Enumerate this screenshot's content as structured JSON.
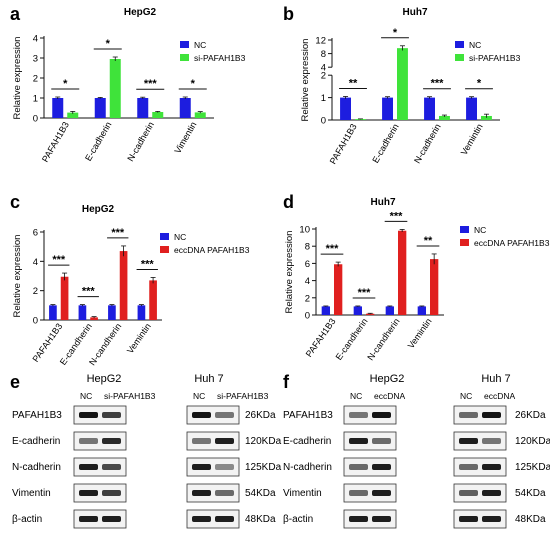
{
  "colors": {
    "nc": "#1d1ddf",
    "si": "#3fe33a",
    "ecc": "#e0201f",
    "axis": "#111111",
    "band_dark": "#1a1a1a",
    "band_bg": "#f3f3f3"
  },
  "chart_data": [
    {
      "panel": "a",
      "type": "bar",
      "title": "HepG2",
      "ylabel": "Relative expression",
      "categories": [
        "PAFAH1B3",
        "E-cadherin",
        "N-cadherin",
        "Vimentin"
      ],
      "ylim": [
        0,
        4
      ],
      "yticks": [
        "0",
        "1",
        "2",
        "3",
        "4"
      ],
      "legend_position": "top-right",
      "series": [
        {
          "name": "NC",
          "values": [
            1,
            1,
            1,
            1
          ],
          "errors": [
            0.05,
            0.03,
            0.04,
            0.05
          ]
        },
        {
          "name": "si-PAFAH1B3",
          "values": [
            0.27,
            2.95,
            0.3,
            0.28
          ],
          "errors": [
            0.06,
            0.1,
            0.03,
            0.04
          ]
        }
      ],
      "significance": [
        "*",
        "*",
        "***",
        "*"
      ]
    },
    {
      "panel": "b",
      "type": "bar",
      "title": "Huh7",
      "ylabel": "Relative expression",
      "categories": [
        "PAFAH1B3",
        "E-cadherin",
        "N-cadherin",
        "Vemintin"
      ],
      "ylim": [
        0,
        12
      ],
      "axis_break": [
        2,
        4
      ],
      "yticks": [
        "0",
        "1",
        "2",
        "4",
        "8",
        "12"
      ],
      "legend_position": "top-right",
      "series": [
        {
          "name": "NC",
          "values": [
            1,
            1,
            1,
            1
          ],
          "errors": [
            0.05,
            0.04,
            0.04,
            0.04
          ]
        },
        {
          "name": "si-PAFAH1B3",
          "values": [
            0.04,
            9.6,
            0.18,
            0.18
          ],
          "errors": [
            0.01,
            0.7,
            0.04,
            0.08
          ]
        }
      ],
      "significance": [
        "**",
        "*",
        "***",
        "*"
      ]
    },
    {
      "panel": "c",
      "type": "bar",
      "title": "HepG2",
      "ylabel": "Relative expression",
      "categories": [
        "PAFAH1B3",
        "E-candherin",
        "N-candherin",
        "Vemintin"
      ],
      "ylim": [
        0,
        6
      ],
      "yticks": [
        "0",
        "2",
        "4",
        "6"
      ],
      "legend_position": "top-right",
      "series": [
        {
          "name": "NC",
          "values": [
            1,
            1,
            1,
            1
          ],
          "errors": [
            0.05,
            0.05,
            0.05,
            0.05
          ]
        },
        {
          "name": "eccDNA  PAFAH1B3",
          "values": [
            2.95,
            0.18,
            4.7,
            2.7
          ],
          "errors": [
            0.25,
            0.05,
            0.35,
            0.2
          ]
        }
      ],
      "significance": [
        "***",
        "***",
        "***",
        "***"
      ]
    },
    {
      "panel": "d",
      "type": "bar",
      "title": "Huh7",
      "ylabel": "Relative expression",
      "categories": [
        "PAFAH1B3",
        "E-candherin",
        "N-candherin",
        "Vemintin"
      ],
      "ylim": [
        0,
        10
      ],
      "yticks": [
        "0",
        "2",
        "4",
        "6",
        "8",
        "10"
      ],
      "legend_position": "top-right",
      "series": [
        {
          "name": "NC",
          "values": [
            1,
            1,
            1,
            1
          ],
          "errors": [
            0.05,
            0.05,
            0.05,
            0.05
          ]
        },
        {
          "name": "eccDNA  PAFAH1B3",
          "values": [
            5.9,
            0.15,
            9.8,
            6.5
          ],
          "errors": [
            0.25,
            0.05,
            0.15,
            0.6
          ]
        }
      ],
      "significance": [
        "***",
        "***",
        "***",
        "**"
      ]
    }
  ],
  "blots": [
    {
      "panel": "e",
      "cells": [
        "HepG2",
        "Huh 7"
      ],
      "lanes_left": [
        "NC",
        "si-PAFAH1B3"
      ],
      "lanes_right": [
        "NC",
        "si-PAFAH1B3"
      ],
      "proteins": [
        "PAFAH1B3",
        "E-cadherin",
        "N-cadherin",
        "Vimentin",
        "β-actin"
      ],
      "sizes": [
        "26KDa",
        "120KDa",
        "125KDa",
        "54KDa",
        "48KDa"
      ],
      "intensity_left": [
        [
          1,
          0.8
        ],
        [
          0.55,
          0.9
        ],
        [
          0.95,
          0.75
        ],
        [
          0.95,
          0.8
        ],
        [
          0.95,
          0.95
        ]
      ],
      "intensity_right": [
        [
          1,
          0.55
        ],
        [
          0.55,
          0.95
        ],
        [
          0.95,
          0.45
        ],
        [
          0.95,
          0.6
        ],
        [
          0.95,
          0.95
        ]
      ]
    },
    {
      "panel": "f",
      "cells": [
        "HepG2",
        "Huh 7"
      ],
      "lanes_left": [
        "NC",
        "eccDNA"
      ],
      "lanes_right": [
        "NC",
        "eccDNA"
      ],
      "proteins": [
        "PAFAH1B3",
        "E-cadherin",
        "N-cadherin",
        "Vimentin",
        "β-actin"
      ],
      "sizes": [
        "26KDa",
        "120KDa",
        "125KDa",
        "54KDa",
        "48KDa"
      ],
      "intensity_left": [
        [
          0.55,
          1
        ],
        [
          0.95,
          0.6
        ],
        [
          0.6,
          0.95
        ],
        [
          0.6,
          0.95
        ],
        [
          0.95,
          0.95
        ]
      ],
      "intensity_right": [
        [
          0.6,
          1
        ],
        [
          0.95,
          0.55
        ],
        [
          0.6,
          0.95
        ],
        [
          0.65,
          0.95
        ],
        [
          0.95,
          0.95
        ]
      ]
    }
  ]
}
